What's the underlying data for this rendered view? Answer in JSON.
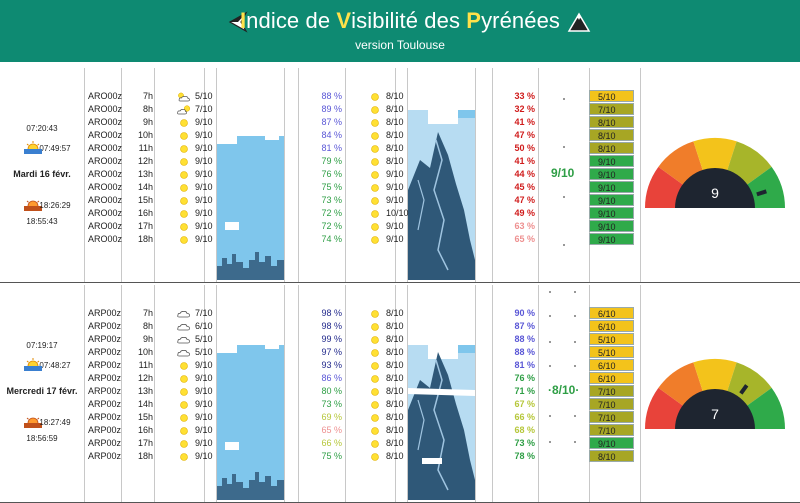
{
  "header": {
    "title_parts": [
      {
        "t": "I",
        "y": true
      },
      {
        "t": "ndice de ",
        "y": false
      },
      {
        "t": "V",
        "y": true
      },
      {
        "t": "isibilité des ",
        "y": false
      },
      {
        "t": "P",
        "y": true
      },
      {
        "t": "yrénées",
        "y": false
      }
    ],
    "subtitle": "version Toulouse",
    "left_icon": "back-arrow-icon",
    "right_icon": "mountain-icon"
  },
  "colors": {
    "header": "#0e8a72",
    "sky": "#7fc6ec",
    "badge_yellow": "#f3c31b",
    "badge_olive": "#a7a624",
    "badge_green": "#2faa4a",
    "pct_blue": "#5a57d6",
    "pct_green": "#2e9e45",
    "pct_red": "#d01c1c"
  },
  "days": [
    {
      "time1": "07:20:43",
      "sunrise": "07:49:57",
      "date": "Mardi 16 févr.",
      "sunset": "18:26:29",
      "time2": "18:55:43",
      "score": "9/10",
      "gauge": "9",
      "rows": [
        {
          "st": "ARO00z",
          "h": "7h",
          "icon": "partly-cloudy-icon",
          "cl": "5/10",
          "pct": "88 %",
          "pc": "blue",
          "sc": "8/10",
          "pct2": "33 %",
          "p2c": "red",
          "badge": "5/10",
          "bc": "yellow"
        },
        {
          "st": "ARO00z",
          "h": "8h",
          "icon": "partly-sunny-icon",
          "cl": "7/10",
          "pct": "89 %",
          "pc": "blue",
          "sc": "8/10",
          "pct2": "32 %",
          "p2c": "red",
          "badge": "7/10",
          "bc": "olive"
        },
        {
          "st": "ARO00z",
          "h": "9h",
          "icon": "sun-icon",
          "cl": "9/10",
          "pct": "87 %",
          "pc": "blue",
          "sc": "8/10",
          "pct2": "41 %",
          "p2c": "red",
          "badge": "8/10",
          "bc": "olive"
        },
        {
          "st": "ARO00z",
          "h": "10h",
          "icon": "sun-icon",
          "cl": "9/10",
          "pct": "84 %",
          "pc": "blue",
          "sc": "8/10",
          "pct2": "47 %",
          "p2c": "red",
          "badge": "8/10",
          "bc": "olive"
        },
        {
          "st": "ARO00z",
          "h": "11h",
          "icon": "sun-icon",
          "cl": "9/10",
          "pct": "81 %",
          "pc": "blue",
          "sc": "8/10",
          "pct2": "50 %",
          "p2c": "red",
          "badge": "8/10",
          "bc": "olive"
        },
        {
          "st": "ARO00z",
          "h": "12h",
          "icon": "sun-icon",
          "cl": "9/10",
          "pct": "79 %",
          "pc": "green",
          "sc": "8/10",
          "pct2": "41 %",
          "p2c": "red",
          "badge": "9/10",
          "bc": "green"
        },
        {
          "st": "ARO00z",
          "h": "13h",
          "icon": "sun-icon",
          "cl": "9/10",
          "pct": "76 %",
          "pc": "green",
          "sc": "9/10",
          "pct2": "44 %",
          "p2c": "red",
          "badge": "9/10",
          "bc": "green"
        },
        {
          "st": "ARO00z",
          "h": "14h",
          "icon": "sun-icon",
          "cl": "9/10",
          "pct": "75 %",
          "pc": "green",
          "sc": "9/10",
          "pct2": "45 %",
          "p2c": "red",
          "badge": "9/10",
          "bc": "green"
        },
        {
          "st": "ARO00z",
          "h": "15h",
          "icon": "sun-icon",
          "cl": "9/10",
          "pct": "73 %",
          "pc": "green",
          "sc": "9/10",
          "pct2": "47 %",
          "p2c": "red",
          "badge": "9/10",
          "bc": "green"
        },
        {
          "st": "ARO00z",
          "h": "16h",
          "icon": "sun-icon",
          "cl": "9/10",
          "pct": "72 %",
          "pc": "green",
          "sc": "10/10",
          "pct2": "49 %",
          "p2c": "red",
          "badge": "9/10",
          "bc": "green"
        },
        {
          "st": "ARO00z",
          "h": "17h",
          "icon": "sun-icon",
          "cl": "9/10",
          "pct": "72 %",
          "pc": "green",
          "sc": "9/10",
          "pct2": "63 %",
          "p2c": "pink",
          "badge": "9/10",
          "bc": "green"
        },
        {
          "st": "ARO00z",
          "h": "18h",
          "icon": "sun-icon",
          "cl": "9/10",
          "pct": "74 %",
          "pc": "green",
          "sc": "9/10",
          "pct2": "65 %",
          "p2c": "pink",
          "badge": "9/10",
          "bc": "green"
        }
      ]
    },
    {
      "time1": "07:19:17",
      "sunrise": "07:48:27",
      "date": "Mercredi 17 févr.",
      "sunset": "18:27:49",
      "time2": "18:56:59",
      "score": "·8/10·",
      "gauge": "7",
      "rows": [
        {
          "st": "ARP00z",
          "h": "7h",
          "icon": "cloud-icon",
          "cl": "7/10",
          "pct": "98 %",
          "pc": "navy",
          "sc": "8/10",
          "pct2": "90 %",
          "p2c": "blue",
          "badge": "6/10",
          "bc": "yellow"
        },
        {
          "st": "ARP00z",
          "h": "8h",
          "icon": "cloud-icon",
          "cl": "6/10",
          "pct": "98 %",
          "pc": "navy",
          "sc": "8/10",
          "pct2": "87 %",
          "p2c": "blue",
          "badge": "6/10",
          "bc": "yellow"
        },
        {
          "st": "ARP00z",
          "h": "9h",
          "icon": "cloud-icon",
          "cl": "5/10",
          "pct": "99 %",
          "pc": "navy",
          "sc": "8/10",
          "pct2": "88 %",
          "p2c": "blue",
          "badge": "5/10",
          "bc": "yellow"
        },
        {
          "st": "ARP00z",
          "h": "10h",
          "icon": "cloud-icon",
          "cl": "5/10",
          "pct": "97 %",
          "pc": "navy",
          "sc": "8/10",
          "pct2": "88 %",
          "p2c": "blue",
          "badge": "5/10",
          "bc": "yellow"
        },
        {
          "st": "ARP00z",
          "h": "11h",
          "icon": "sun-icon",
          "cl": "9/10",
          "pct": "93 %",
          "pc": "navy",
          "sc": "8/10",
          "pct2": "81 %",
          "p2c": "blue",
          "badge": "6/10",
          "bc": "yellow"
        },
        {
          "st": "ARP00z",
          "h": "12h",
          "icon": "sun-icon",
          "cl": "9/10",
          "pct": "86 %",
          "pc": "blue",
          "sc": "8/10",
          "pct2": "76 %",
          "p2c": "green",
          "badge": "6/10",
          "bc": "yellow"
        },
        {
          "st": "ARP00z",
          "h": "13h",
          "icon": "sun-icon",
          "cl": "9/10",
          "pct": "80 %",
          "pc": "green",
          "sc": "8/10",
          "pct2": "71 %",
          "p2c": "green",
          "badge": "7/10",
          "bc": "olive"
        },
        {
          "st": "ARP00z",
          "h": "14h",
          "icon": "sun-icon",
          "cl": "9/10",
          "pct": "73 %",
          "pc": "green",
          "sc": "8/10",
          "pct2": "67 %",
          "p2c": "lime",
          "badge": "7/10",
          "bc": "olive"
        },
        {
          "st": "ARP00z",
          "h": "15h",
          "icon": "sun-icon",
          "cl": "9/10",
          "pct": "69 %",
          "pc": "lime",
          "sc": "8/10",
          "pct2": "66 %",
          "p2c": "lime",
          "badge": "7/10",
          "bc": "olive"
        },
        {
          "st": "ARP00z",
          "h": "16h",
          "icon": "sun-icon",
          "cl": "9/10",
          "pct": "65 %",
          "pc": "pink",
          "sc": "8/10",
          "pct2": "68 %",
          "p2c": "lime",
          "badge": "7/10",
          "bc": "olive"
        },
        {
          "st": "ARP00z",
          "h": "17h",
          "icon": "sun-icon",
          "cl": "9/10",
          "pct": "66 %",
          "pc": "lime",
          "sc": "8/10",
          "pct2": "73 %",
          "p2c": "green",
          "badge": "9/10",
          "bc": "green"
        },
        {
          "st": "ARP00z",
          "h": "18h",
          "icon": "sun-icon",
          "cl": "9/10",
          "pct": "75 %",
          "pc": "green",
          "sc": "8/10",
          "pct2": "78 %",
          "p2c": "green",
          "badge": "8/10",
          "bc": "olive"
        }
      ]
    }
  ]
}
